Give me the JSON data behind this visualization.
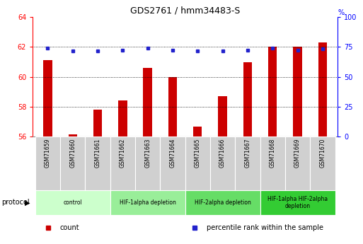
{
  "title": "GDS2761 / hmm34483-S",
  "samples": [
    "GSM71659",
    "GSM71660",
    "GSM71661",
    "GSM71662",
    "GSM71663",
    "GSM71664",
    "GSM71665",
    "GSM71666",
    "GSM71667",
    "GSM71668",
    "GSM71669",
    "GSM71670"
  ],
  "counts": [
    61.1,
    56.15,
    57.8,
    58.4,
    60.6,
    60.0,
    56.65,
    58.7,
    61.0,
    62.0,
    62.0,
    62.3
  ],
  "percentiles": [
    74.0,
    71.5,
    71.5,
    72.0,
    74.0,
    72.0,
    71.5,
    71.8,
    72.0,
    74.0,
    72.5,
    73.5
  ],
  "ylim_left": [
    56,
    64
  ],
  "ylim_right": [
    0,
    100
  ],
  "yticks_left": [
    56,
    58,
    60,
    62,
    64
  ],
  "yticks_right": [
    0,
    25,
    50,
    75,
    100
  ],
  "bar_color": "#cc0000",
  "dot_color": "#2222cc",
  "bar_bottom": 56,
  "bar_width": 0.35,
  "groups": [
    {
      "label": "control",
      "start": 0,
      "end": 3,
      "color": "#ccffcc"
    },
    {
      "label": "HIF-1alpha depletion",
      "start": 3,
      "end": 6,
      "color": "#99ee99"
    },
    {
      "label": "HIF-2alpha depletion",
      "start": 6,
      "end": 9,
      "color": "#66dd66"
    },
    {
      "label": "HIF-1alpha HIF-2alpha\ndepletion",
      "start": 9,
      "end": 12,
      "color": "#33cc33"
    }
  ],
  "plot_bg": "#ffffff",
  "fig_bg": "#ffffff",
  "cell_bg": "#d0d0d0",
  "protocol_label": "protocol",
  "legend_items": [
    {
      "label": "count",
      "color": "#cc0000"
    },
    {
      "label": "percentile rank within the sample",
      "color": "#2222cc"
    }
  ],
  "grid_yticks": [
    58,
    60,
    62
  ],
  "n_samples": 12
}
